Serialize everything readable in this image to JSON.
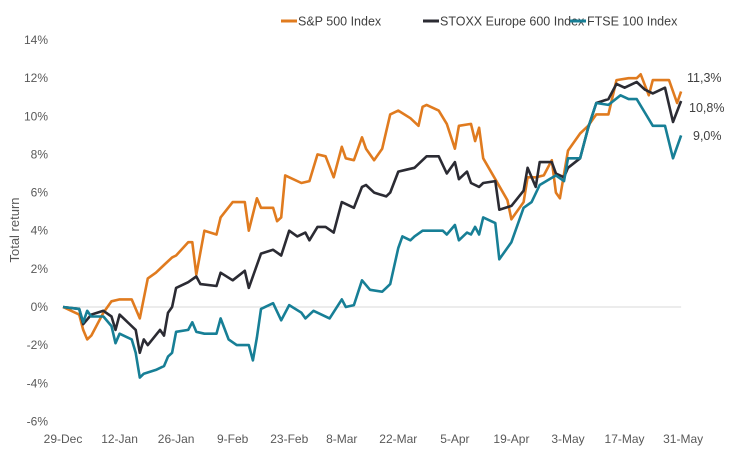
{
  "chart_data": {
    "type": "line",
    "title": "",
    "xlabel": "",
    "ylabel": "Total return",
    "ylim": [
      -6,
      14
    ],
    "y_ticks": [
      "14%",
      "12%",
      "10%",
      "8%",
      "6%",
      "4%",
      "2%",
      "0%",
      "-2%",
      "-4%",
      "-6%"
    ],
    "x_ticks": [
      "29-Dec",
      "12-Jan",
      "26-Jan",
      "9-Feb",
      "23-Feb",
      "8-Mar",
      "22-Mar",
      "5-Apr",
      "19-Apr",
      "3-May",
      "17-May",
      "31-May"
    ],
    "grid": "zero line only",
    "legend_position": "top",
    "series": [
      {
        "name": "S&P 500 Index",
        "color": "#E07B1F",
        "end_label": "11,3%",
        "points": [
          [
            "29-Dec",
            0
          ],
          [
            "2-Jan",
            -0.4
          ],
          [
            "3-Jan",
            -1.2
          ],
          [
            "4-Jan",
            -1.7
          ],
          [
            "5-Jan",
            -1.5
          ],
          [
            "8-Jan",
            -0.3
          ],
          [
            "10-Jan",
            0.3
          ],
          [
            "12-Jan",
            0.4
          ],
          [
            "15-Jan",
            0.4
          ],
          [
            "17-Jan",
            -0.6
          ],
          [
            "19-Jan",
            1.5
          ],
          [
            "21-Jan",
            1.8
          ],
          [
            "23-Jan",
            2.2
          ],
          [
            "25-Jan",
            2.6
          ],
          [
            "26-Jan",
            2.7
          ],
          [
            "29-Jan",
            3.4
          ],
          [
            "30-Jan",
            3.4
          ],
          [
            "31-Jan",
            1.7
          ],
          [
            "2-Feb",
            4.0
          ],
          [
            "5-Feb",
            3.8
          ],
          [
            "6-Feb",
            4.7
          ],
          [
            "9-Feb",
            5.5
          ],
          [
            "12-Feb",
            5.5
          ],
          [
            "13-Feb",
            4.0
          ],
          [
            "15-Feb",
            5.7
          ],
          [
            "16-Feb",
            5.2
          ],
          [
            "19-Feb",
            5.2
          ],
          [
            "20-Feb",
            4.5
          ],
          [
            "21-Feb",
            4.7
          ],
          [
            "22-Feb",
            6.9
          ],
          [
            "26-Feb",
            6.5
          ],
          [
            "28-Feb",
            6.6
          ],
          [
            "2-Mar",
            8.0
          ],
          [
            "4-Mar",
            7.9
          ],
          [
            "6-Mar",
            6.8
          ],
          [
            "8-Mar",
            8.4
          ],
          [
            "9-Mar",
            7.8
          ],
          [
            "11-Mar",
            7.7
          ],
          [
            "13-Mar",
            8.9
          ],
          [
            "14-Mar",
            8.3
          ],
          [
            "16-Mar",
            7.7
          ],
          [
            "18-Mar",
            8.3
          ],
          [
            "20-Mar",
            10.1
          ],
          [
            "22-Mar",
            10.3
          ],
          [
            "25-Mar",
            9.9
          ],
          [
            "27-Mar",
            9.5
          ],
          [
            "28-Mar",
            10.5
          ],
          [
            "29-Mar",
            10.6
          ],
          [
            "1-Apr",
            10.3
          ],
          [
            "3-Apr",
            9.6
          ],
          [
            "5-Apr",
            8.3
          ],
          [
            "6-Apr",
            9.5
          ],
          [
            "9-Apr",
            9.6
          ],
          [
            "10-Apr",
            8.7
          ],
          [
            "11-Apr",
            9.4
          ],
          [
            "12-Apr",
            7.8
          ],
          [
            "15-Apr",
            6.7
          ],
          [
            "18-Apr",
            5.6
          ],
          [
            "19-Apr",
            4.6
          ],
          [
            "22-Apr",
            5.5
          ],
          [
            "23-Apr",
            6.8
          ],
          [
            "25-Apr",
            6.8
          ],
          [
            "27-Apr",
            6.9
          ],
          [
            "29-Apr",
            7.7
          ],
          [
            "30-Apr",
            6.0
          ],
          [
            "1-May",
            5.7
          ],
          [
            "3-May",
            8.2
          ],
          [
            "6-May",
            9.1
          ],
          [
            "8-May",
            9.5
          ],
          [
            "10-May",
            10.1
          ],
          [
            "13-May",
            10.1
          ],
          [
            "15-May",
            11.9
          ],
          [
            "18-May",
            12.0
          ],
          [
            "20-May",
            12.0
          ],
          [
            "21-May",
            12.2
          ],
          [
            "23-May",
            11.1
          ],
          [
            "24-May",
            11.9
          ],
          [
            "28-May",
            11.9
          ],
          [
            "30-May",
            10.7
          ],
          [
            "31-May",
            11.3
          ]
        ]
      },
      {
        "name": "STOXX Europe 600 Index",
        "color": "#2B2B33",
        "end_label": "10,8%",
        "points": [
          [
            "29-Dec",
            0
          ],
          [
            "2-Jan",
            -0.1
          ],
          [
            "3-Jan",
            -0.9
          ],
          [
            "5-Jan",
            -0.4
          ],
          [
            "8-Jan",
            -0.2
          ],
          [
            "10-Jan",
            -0.5
          ],
          [
            "11-Jan",
            -1.2
          ],
          [
            "12-Jan",
            -0.4
          ],
          [
            "16-Jan",
            -1.2
          ],
          [
            "17-Jan",
            -2.4
          ],
          [
            "18-Jan",
            -1.7
          ],
          [
            "19-Jan",
            -2.0
          ],
          [
            "22-Jan",
            -1.2
          ],
          [
            "23-Jan",
            -1.5
          ],
          [
            "24-Jan",
            -0.3
          ],
          [
            "25-Jan",
            0.0
          ],
          [
            "26-Jan",
            1.0
          ],
          [
            "29-Jan",
            1.3
          ],
          [
            "31-Jan",
            1.6
          ],
          [
            "1-Feb",
            1.2
          ],
          [
            "5-Feb",
            1.1
          ],
          [
            "6-Feb",
            1.8
          ],
          [
            "9-Feb",
            1.4
          ],
          [
            "12-Feb",
            1.9
          ],
          [
            "13-Feb",
            1.0
          ],
          [
            "16-Feb",
            2.8
          ],
          [
            "19-Feb",
            3.0
          ],
          [
            "21-Feb",
            2.7
          ],
          [
            "23-Feb",
            4.0
          ],
          [
            "25-Feb",
            3.7
          ],
          [
            "27-Feb",
            3.9
          ],
          [
            "28-Feb",
            3.5
          ],
          [
            "2-Mar",
            4.2
          ],
          [
            "4-Mar",
            4.2
          ],
          [
            "6-Mar",
            3.9
          ],
          [
            "8-Mar",
            5.5
          ],
          [
            "11-Mar",
            5.2
          ],
          [
            "13-Mar",
            6.3
          ],
          [
            "14-Mar",
            6.4
          ],
          [
            "16-Mar",
            6.0
          ],
          [
            "19-Mar",
            5.8
          ],
          [
            "20-Mar",
            6.0
          ],
          [
            "22-Mar",
            7.1
          ],
          [
            "24-Mar",
            7.2
          ],
          [
            "26-Mar",
            7.3
          ],
          [
            "29-Mar",
            7.9
          ],
          [
            "1-Apr",
            7.9
          ],
          [
            "3-Apr",
            7.0
          ],
          [
            "5-Apr",
            7.6
          ],
          [
            "6-Apr",
            6.7
          ],
          [
            "8-Apr",
            7.1
          ],
          [
            "9-Apr",
            6.5
          ],
          [
            "11-Apr",
            6.3
          ],
          [
            "12-Apr",
            6.5
          ],
          [
            "15-Apr",
            6.6
          ],
          [
            "16-Apr",
            5.1
          ],
          [
            "19-Apr",
            5.3
          ],
          [
            "22-Apr",
            6.1
          ],
          [
            "23-Apr",
            7.3
          ],
          [
            "25-Apr",
            6.3
          ],
          [
            "26-Apr",
            7.6
          ],
          [
            "29-Apr",
            7.6
          ],
          [
            "30-Apr",
            7.0
          ],
          [
            "2-May",
            6.8
          ],
          [
            "3-May",
            7.3
          ],
          [
            "6-May",
            7.8
          ],
          [
            "8-May",
            9.4
          ],
          [
            "10-May",
            10.7
          ],
          [
            "13-May",
            10.9
          ],
          [
            "15-May",
            11.7
          ],
          [
            "17-May",
            11.5
          ],
          [
            "20-May",
            11.8
          ],
          [
            "22-May",
            11.4
          ],
          [
            "24-May",
            11.2
          ],
          [
            "27-May",
            11.5
          ],
          [
            "29-May",
            9.7
          ],
          [
            "31-May",
            10.8
          ]
        ]
      },
      {
        "name": "FTSE 100 Index",
        "color": "#177F96",
        "end_label": "9,0%",
        "points": [
          [
            "29-Dec",
            0
          ],
          [
            "2-Jan",
            -0.1
          ],
          [
            "3-Jan",
            -0.8
          ],
          [
            "4-Jan",
            -0.2
          ],
          [
            "5-Jan",
            -0.5
          ],
          [
            "8-Jan",
            -0.5
          ],
          [
            "10-Jan",
            -1.0
          ],
          [
            "11-Jan",
            -1.9
          ],
          [
            "12-Jan",
            -1.4
          ],
          [
            "15-Jan",
            -1.7
          ],
          [
            "16-Jan",
            -2.4
          ],
          [
            "17-Jan",
            -3.7
          ],
          [
            "18-Jan",
            -3.5
          ],
          [
            "21-Jan",
            -3.3
          ],
          [
            "23-Jan",
            -3.1
          ],
          [
            "24-Jan",
            -2.6
          ],
          [
            "25-Jan",
            -2.4
          ],
          [
            "26-Jan",
            -1.3
          ],
          [
            "29-Jan",
            -1.2
          ],
          [
            "30-Jan",
            -0.8
          ],
          [
            "31-Jan",
            -1.3
          ],
          [
            "2-Feb",
            -1.4
          ],
          [
            "5-Feb",
            -1.4
          ],
          [
            "6-Feb",
            -0.6
          ],
          [
            "8-Feb",
            -1.7
          ],
          [
            "10-Feb",
            -2.0
          ],
          [
            "13-Feb",
            -2.0
          ],
          [
            "14-Feb",
            -2.8
          ],
          [
            "15-Feb",
            -1.6
          ],
          [
            "16-Feb",
            -0.1
          ],
          [
            "19-Feb",
            0.2
          ],
          [
            "21-Feb",
            -0.7
          ],
          [
            "23-Feb",
            0.1
          ],
          [
            "26-Feb",
            -0.3
          ],
          [
            "27-Feb",
            -0.6
          ],
          [
            "1-Mar",
            -0.2
          ],
          [
            "5-Mar",
            -0.6
          ],
          [
            "8-Mar",
            0.4
          ],
          [
            "9-Mar",
            0.0
          ],
          [
            "11-Mar",
            0.1
          ],
          [
            "13-Mar",
            1.4
          ],
          [
            "15-Mar",
            0.9
          ],
          [
            "18-Mar",
            0.8
          ],
          [
            "19-Mar",
            1.0
          ],
          [
            "20-Mar",
            1.2
          ],
          [
            "22-Mar",
            3.1
          ],
          [
            "23-Mar",
            3.7
          ],
          [
            "25-Mar",
            3.5
          ],
          [
            "26-Mar",
            3.7
          ],
          [
            "28-Mar",
            4.0
          ],
          [
            "2-Apr",
            4.0
          ],
          [
            "3-Apr",
            3.8
          ],
          [
            "5-Apr",
            4.3
          ],
          [
            "6-Apr",
            3.5
          ],
          [
            "8-Apr",
            3.9
          ],
          [
            "9-Apr",
            3.8
          ],
          [
            "10-Apr",
            4.2
          ],
          [
            "11-Apr",
            3.8
          ],
          [
            "12-Apr",
            4.7
          ],
          [
            "15-Apr",
            4.4
          ],
          [
            "16-Apr",
            2.5
          ],
          [
            "19-Apr",
            3.4
          ],
          [
            "22-Apr",
            5.2
          ],
          [
            "24-Apr",
            5.5
          ],
          [
            "26-Apr",
            6.4
          ],
          [
            "30-Apr",
            6.9
          ],
          [
            "2-May",
            6.6
          ],
          [
            "3-May",
            7.8
          ],
          [
            "6-May",
            7.8
          ],
          [
            "8-May",
            9.4
          ],
          [
            "10-May",
            10.7
          ],
          [
            "13-May",
            10.6
          ],
          [
            "16-May",
            11.1
          ],
          [
            "18-May",
            10.9
          ],
          [
            "20-May",
            10.9
          ],
          [
            "22-May",
            10.2
          ],
          [
            "24-May",
            9.5
          ],
          [
            "27-May",
            9.5
          ],
          [
            "29-May",
            7.8
          ],
          [
            "31-May",
            9.0
          ]
        ]
      }
    ]
  }
}
